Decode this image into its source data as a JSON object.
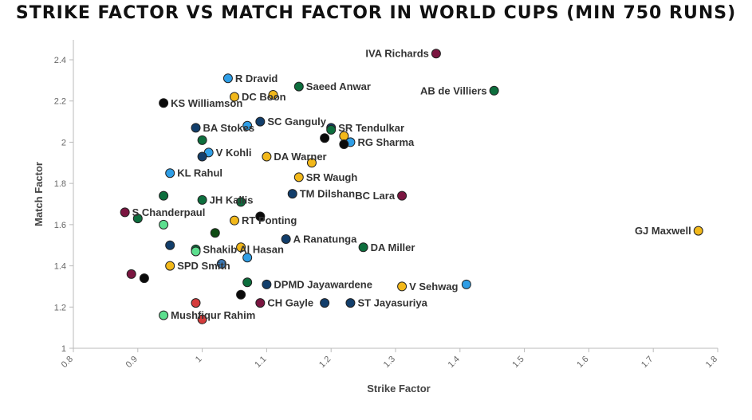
{
  "chart_data": {
    "type": "scatter",
    "title": "STRIKE FACTOR VS MATCH FACTOR IN WORLD CUPS (MIN 750 RUNS)",
    "xlabel": "Strike Factor",
    "ylabel": "Match Factor",
    "xlim": [
      0.8,
      1.8
    ],
    "ylim": [
      1,
      2.45
    ],
    "xticks": [
      "0.8",
      "0.9",
      "1",
      "1.1",
      "1.2",
      "1.3",
      "1.4",
      "1.5",
      "1.6",
      "1.7",
      "1.8"
    ],
    "yticks": [
      "1",
      "1.2",
      "1.4",
      "1.6",
      "1.8",
      "2",
      "2.2",
      "2.4"
    ],
    "grid": false,
    "points": [
      {
        "label": "IVA Richards",
        "x": 1.363,
        "y": 2.43,
        "color": "#7a1540",
        "label_side": "left"
      },
      {
        "label": "R Dravid",
        "x": 1.04,
        "y": 2.31,
        "color": "#2f9ee6",
        "label_side": "right"
      },
      {
        "label": "Saeed Anwar",
        "x": 1.15,
        "y": 2.27,
        "color": "#0d6e3d",
        "label_side": "right"
      },
      {
        "label": "AB de Villiers",
        "x": 1.453,
        "y": 2.25,
        "color": "#0d6e3d",
        "label_side": "left"
      },
      {
        "label": "DC Boon",
        "x": 1.05,
        "y": 2.22,
        "color": "#f2b81a",
        "label_side": "right"
      },
      {
        "label": "",
        "x": 1.11,
        "y": 2.23,
        "color": "#f2b81a",
        "label_side": "none"
      },
      {
        "label": "KS Williamson",
        "x": 0.94,
        "y": 2.19,
        "color": "#0a0a0a",
        "label_side": "right"
      },
      {
        "label": "SC Ganguly",
        "x": 1.09,
        "y": 2.1,
        "color": "#123e6b",
        "label_side": "right"
      },
      {
        "label": "BA Stokes",
        "x": 0.99,
        "y": 2.07,
        "color": "#123e6b",
        "label_side": "right"
      },
      {
        "label": "",
        "x": 1.07,
        "y": 2.08,
        "color": "#2f9ee6",
        "label_side": "none"
      },
      {
        "label": "SR Tendulkar",
        "x": 1.2,
        "y": 2.07,
        "color": "#123e6b",
        "label_side": "right"
      },
      {
        "label": "",
        "x": 1.2,
        "y": 2.06,
        "color": "#0d6e3d",
        "label_side": "none"
      },
      {
        "label": "",
        "x": 1.22,
        "y": 2.03,
        "color": "#f2b81a",
        "label_side": "none"
      },
      {
        "label": "",
        "x": 1.19,
        "y": 2.02,
        "color": "#0a0a0a",
        "label_side": "none"
      },
      {
        "label": "RG Sharma",
        "x": 1.23,
        "y": 2.0,
        "color": "#2f9ee6",
        "label_side": "right"
      },
      {
        "label": "",
        "x": 1.22,
        "y": 1.99,
        "color": "#0a0a0a",
        "label_side": "none"
      },
      {
        "label": "",
        "x": 1.0,
        "y": 2.01,
        "color": "#0d6e3d",
        "label_side": "none"
      },
      {
        "label": "V Kohli",
        "x": 1.01,
        "y": 1.95,
        "color": "#2f9ee6",
        "label_side": "right"
      },
      {
        "label": "",
        "x": 1.0,
        "y": 1.93,
        "color": "#123e6b",
        "label_side": "none"
      },
      {
        "label": "DA Warner",
        "x": 1.1,
        "y": 1.93,
        "color": "#f2b81a",
        "label_side": "right"
      },
      {
        "label": "",
        "x": 1.17,
        "y": 1.9,
        "color": "#f2b81a",
        "label_side": "none"
      },
      {
        "label": "KL Rahul",
        "x": 0.95,
        "y": 1.85,
        "color": "#2f9ee6",
        "label_side": "right"
      },
      {
        "label": "SR Waugh",
        "x": 1.15,
        "y": 1.83,
        "color": "#f2b81a",
        "label_side": "right"
      },
      {
        "label": "TM Dilshan",
        "x": 1.14,
        "y": 1.75,
        "color": "#123e6b",
        "label_side": "right"
      },
      {
        "label": "BC Lara",
        "x": 1.31,
        "y": 1.74,
        "color": "#7a1540",
        "label_side": "left"
      },
      {
        "label": "",
        "x": 0.94,
        "y": 1.74,
        "color": "#0d6e3d",
        "label_side": "none"
      },
      {
        "label": "JH Kallis",
        "x": 1.0,
        "y": 1.72,
        "color": "#0d6e3d",
        "label_side": "right"
      },
      {
        "label": "",
        "x": 1.06,
        "y": 1.71,
        "color": "#0d6e3d",
        "label_side": "none"
      },
      {
        "label": "S Chanderpaul",
        "x": 0.88,
        "y": 1.66,
        "color": "#7a1540",
        "label_side": "right"
      },
      {
        "label": "",
        "x": 0.9,
        "y": 1.63,
        "color": "#0d6e3d",
        "label_side": "none"
      },
      {
        "label": "",
        "x": 1.09,
        "y": 1.64,
        "color": "#0a0a0a",
        "label_side": "none"
      },
      {
        "label": "RT Ponting",
        "x": 1.05,
        "y": 1.62,
        "color": "#f2b81a",
        "label_side": "right"
      },
      {
        "label": "",
        "x": 0.94,
        "y": 1.6,
        "color": "#5ddf8f",
        "label_side": "none"
      },
      {
        "label": "GJ Maxwell",
        "x": 1.77,
        "y": 1.57,
        "color": "#f2b81a",
        "label_side": "left"
      },
      {
        "label": "",
        "x": 1.02,
        "y": 1.56,
        "color": "#0d4a12",
        "label_side": "none"
      },
      {
        "label": "A Ranatunga",
        "x": 1.13,
        "y": 1.53,
        "color": "#123e6b",
        "label_side": "right"
      },
      {
        "label": "",
        "x": 0.95,
        "y": 1.5,
        "color": "#123e6b",
        "label_side": "none"
      },
      {
        "label": "DA Miller",
        "x": 1.25,
        "y": 1.49,
        "color": "#0d6e3d",
        "label_side": "right"
      },
      {
        "label": "Shakib Al Hasan",
        "x": 0.99,
        "y": 1.48,
        "color": "#0d6e3d",
        "label_side": "right"
      },
      {
        "label": "",
        "x": 0.99,
        "y": 1.47,
        "color": "#5ddf8f",
        "label_side": "none"
      },
      {
        "label": "",
        "x": 1.06,
        "y": 1.49,
        "color": "#f2b81a",
        "label_side": "none"
      },
      {
        "label": "",
        "x": 1.07,
        "y": 1.44,
        "color": "#2f9ee6",
        "label_side": "none"
      },
      {
        "label": "",
        "x": 1.03,
        "y": 1.41,
        "color": "#3b78b4",
        "label_side": "none"
      },
      {
        "label": "SPD Smith",
        "x": 0.95,
        "y": 1.4,
        "color": "#f2b81a",
        "label_side": "right"
      },
      {
        "label": "",
        "x": 0.89,
        "y": 1.36,
        "color": "#7a1540",
        "label_side": "none"
      },
      {
        "label": "",
        "x": 0.91,
        "y": 1.34,
        "color": "#0a0a0a",
        "label_side": "none"
      },
      {
        "label": "",
        "x": 1.07,
        "y": 1.32,
        "color": "#0d6e3d",
        "label_side": "none"
      },
      {
        "label": "DPMD Jayawardene",
        "x": 1.1,
        "y": 1.31,
        "color": "#123e6b",
        "label_side": "right"
      },
      {
        "label": "V Sehwag",
        "x": 1.31,
        "y": 1.3,
        "color": "#f2b81a",
        "label_side": "right"
      },
      {
        "label": "",
        "x": 1.41,
        "y": 1.31,
        "color": "#2f9ee6",
        "label_side": "none"
      },
      {
        "label": "",
        "x": 1.06,
        "y": 1.26,
        "color": "#0a0a0a",
        "label_side": "none"
      },
      {
        "label": "",
        "x": 0.99,
        "y": 1.22,
        "color": "#d43c3c",
        "label_side": "none"
      },
      {
        "label": "CH Gayle",
        "x": 1.09,
        "y": 1.22,
        "color": "#7a1540",
        "label_side": "right"
      },
      {
        "label": "",
        "x": 1.19,
        "y": 1.22,
        "color": "#123e6b",
        "label_side": "none"
      },
      {
        "label": "ST Jayasuriya",
        "x": 1.23,
        "y": 1.22,
        "color": "#123e6b",
        "label_side": "right"
      },
      {
        "label": "Mushfiqur Rahim",
        "x": 0.94,
        "y": 1.16,
        "color": "#5ddf8f",
        "label_side": "right"
      },
      {
        "label": "",
        "x": 1.0,
        "y": 1.14,
        "color": "#d43c3c",
        "label_side": "none"
      }
    ]
  }
}
